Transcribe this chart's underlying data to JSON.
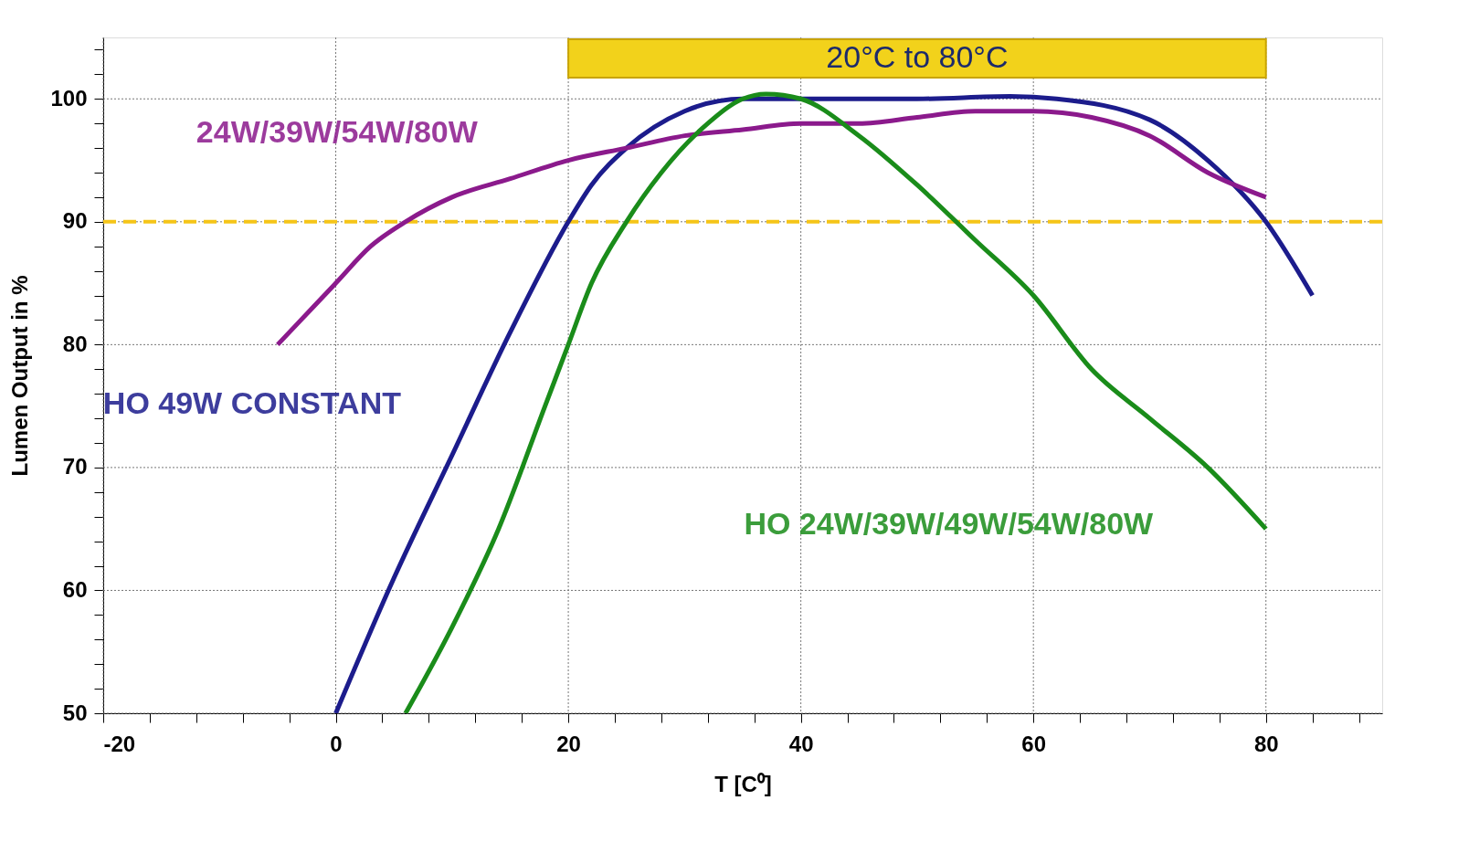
{
  "chart_data": {
    "type": "line",
    "xlabel": "T [C⁰]",
    "ylabel": "Lumen Output in %",
    "series": [
      {
        "name": "HO 49W CONSTANT",
        "color": "#1c1c8c",
        "x": [
          0,
          5,
          10,
          15,
          20,
          22,
          25,
          30,
          35,
          40,
          50,
          58,
          62,
          70,
          75,
          80,
          84
        ],
        "values": [
          50,
          61,
          71,
          81,
          90,
          93,
          96,
          99,
          100,
          100,
          100,
          100.2,
          100,
          98.3,
          95,
          90,
          84
        ]
      },
      {
        "name": "24W/39W/54W/80W",
        "color": "#8b1a8c",
        "x": [
          -5,
          -2,
          0,
          3,
          6,
          10,
          15,
          20,
          25,
          30,
          35,
          40,
          45,
          50,
          55,
          60,
          65,
          70,
          75,
          80
        ],
        "values": [
          80,
          83,
          85,
          88,
          90,
          92,
          93.5,
          95,
          96,
          97,
          97.5,
          98,
          98,
          98.5,
          99,
          99,
          98.5,
          97,
          94,
          92
        ]
      },
      {
        "name": "HO 24W/39W/49W/54W/80W",
        "color": "#1a8c1a",
        "x": [
          6,
          10,
          14,
          18,
          20,
          22,
          25,
          28,
          32,
          35,
          37,
          40,
          45,
          50,
          55,
          60,
          65,
          70,
          75,
          80
        ],
        "values": [
          50,
          57,
          65,
          75,
          80,
          85,
          90,
          94,
          98,
          100,
          100.4,
          100,
          97,
          93,
          88.5,
          84,
          78,
          74,
          70,
          65
        ]
      }
    ],
    "xlim": [
      -20,
      90
    ],
    "ylim": [
      50,
      105
    ],
    "xticks": [
      -20,
      {
        "value": -16,
        "label": null
      },
      {
        "value": -12,
        "label": null
      },
      {
        "value": -8,
        "label": null
      },
      {
        "value": -4,
        "label": null
      },
      0,
      {
        "value": 4,
        "label": null
      },
      {
        "value": 8,
        "label": null
      },
      {
        "value": 12,
        "label": null
      },
      {
        "value": 16,
        "label": null
      },
      20,
      {
        "value": 24,
        "label": null
      },
      {
        "value": 28,
        "label": null
      },
      {
        "value": 32,
        "label": null
      },
      {
        "value": 36,
        "label": null
      },
      40,
      {
        "value": 44,
        "label": null
      },
      {
        "value": 48,
        "label": null
      },
      {
        "value": 52,
        "label": null
      },
      {
        "value": 56,
        "label": null
      },
      60,
      {
        "value": 64,
        "label": null
      },
      {
        "value": 68,
        "label": null
      },
      {
        "value": 72,
        "label": null
      },
      {
        "value": 76,
        "label": null
      },
      80,
      {
        "value": 84,
        "label": null
      },
      {
        "value": 88,
        "label": null
      }
    ],
    "yticks": [
      50,
      {
        "value": 52,
        "label": null
      },
      {
        "value": 54,
        "label": null
      },
      {
        "value": 56,
        "label": null
      },
      {
        "value": 58,
        "label": null
      },
      60,
      {
        "value": 62,
        "label": null
      },
      {
        "value": 64,
        "label": null
      },
      {
        "value": 66,
        "label": null
      },
      {
        "value": 68,
        "label": null
      },
      70,
      {
        "value": 72,
        "label": null
      },
      {
        "value": 74,
        "label": null
      },
      {
        "value": 76,
        "label": null
      },
      {
        "value": 78,
        "label": null
      },
      80,
      {
        "value": 82,
        "label": null
      },
      {
        "value": 84,
        "label": null
      },
      {
        "value": 86,
        "label": null
      },
      {
        "value": 88,
        "label": null
      },
      90,
      {
        "value": 92,
        "label": null
      },
      {
        "value": 94,
        "label": null
      },
      {
        "value": 96,
        "label": null
      },
      {
        "value": 98,
        "label": null
      },
      100,
      {
        "value": 102,
        "label": null
      },
      {
        "value": 104,
        "label": null
      }
    ],
    "ref_lines": [
      {
        "axis": "y",
        "value": 90,
        "color": "#f5c518",
        "line_style": "dashed"
      }
    ],
    "bands": [
      {
        "axis": "x",
        "from": 20,
        "to": 80,
        "label": "20°C to 80°C",
        "color": "#f2d21b"
      }
    ],
    "grid": true,
    "legend": false,
    "marker": "none",
    "line_style": "solid"
  }
}
